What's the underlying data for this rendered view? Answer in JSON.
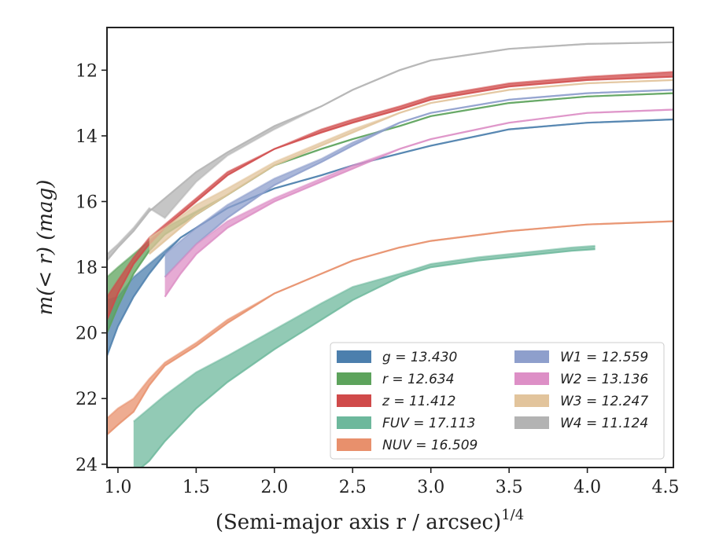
{
  "chart_data": {
    "type": "line",
    "xlabel": "(Semi-major axis r / arcsec)",
    "xlabel_sup": "1/4",
    "ylabel": "m(< r) (mag)",
    "xlim": [
      0.93,
      4.55
    ],
    "ylim": [
      24.1,
      10.7
    ],
    "y_inverted": true,
    "xticks": [
      1.0,
      1.5,
      2.0,
      2.5,
      3.0,
      3.5,
      4.0,
      4.5
    ],
    "xtick_labels": [
      "1.0",
      "1.5",
      "2.0",
      "2.5",
      "3.0",
      "3.5",
      "4.0",
      "4.5"
    ],
    "yticks": [
      12,
      14,
      16,
      18,
      20,
      22,
      24
    ],
    "ytick_labels": [
      "12",
      "14",
      "16",
      "18",
      "20",
      "22",
      "24"
    ],
    "grid": false,
    "legend_position": "lower-right",
    "series": [
      {
        "name": "g",
        "value": "13.430",
        "color": "#4c7fad",
        "x": [
          0.93,
          1.0,
          1.1,
          1.2,
          1.3,
          1.4,
          1.5,
          1.7,
          2.0,
          2.3,
          2.5,
          3.0,
          3.5,
          4.0,
          4.55
        ],
        "y": [
          20.7,
          19.8,
          18.9,
          18.2,
          17.6,
          17.1,
          16.8,
          16.2,
          15.6,
          15.2,
          14.9,
          14.3,
          13.8,
          13.6,
          13.5
        ],
        "y2": [
          19.0,
          18.9,
          18.3,
          17.9,
          17.5,
          17.1,
          16.8,
          16.2,
          15.6,
          15.2,
          14.9,
          14.3,
          13.8,
          13.6,
          13.5
        ]
      },
      {
        "name": "r",
        "value": "12.634",
        "color": "#5da35c",
        "x": [
          0.93,
          1.0,
          1.1,
          1.2,
          1.3,
          1.5,
          1.7,
          2.0,
          2.3,
          2.5,
          2.8,
          3.0,
          3.5,
          4.0,
          4.55
        ],
        "y": [
          20.0,
          19.2,
          18.2,
          17.5,
          17.0,
          16.4,
          15.8,
          14.9,
          14.4,
          14.1,
          13.7,
          13.4,
          13.0,
          12.8,
          12.7
        ],
        "y2": [
          18.3,
          18.0,
          17.6,
          17.2,
          16.8,
          16.3,
          15.8,
          14.9,
          14.4,
          14.1,
          13.7,
          13.4,
          13.0,
          12.8,
          12.7
        ]
      },
      {
        "name": "z",
        "value": "11.412",
        "color": "#d04a4a",
        "x": [
          0.93,
          1.0,
          1.1,
          1.2,
          1.3,
          1.5,
          1.7,
          2.0,
          2.3,
          2.5,
          2.8,
          3.0,
          3.5,
          4.0,
          4.55
        ],
        "y": [
          19.6,
          18.8,
          17.9,
          17.3,
          16.8,
          16.0,
          15.2,
          14.4,
          13.9,
          13.6,
          13.2,
          12.9,
          12.5,
          12.3,
          12.2
        ],
        "y2": [
          18.9,
          18.4,
          17.7,
          17.1,
          16.7,
          15.9,
          15.1,
          14.4,
          13.8,
          13.5,
          13.1,
          12.8,
          12.4,
          12.2,
          12.05
        ]
      },
      {
        "name": "FUV",
        "value": "17.113",
        "color": "#6db89c",
        "x": [
          1.1,
          1.2,
          1.3,
          1.5,
          1.7,
          2.0,
          2.3,
          2.5,
          2.8,
          3.0,
          3.3,
          3.6,
          3.9,
          4.05
        ],
        "y": [
          24.3,
          23.9,
          23.3,
          22.3,
          21.5,
          20.5,
          19.6,
          19.0,
          18.3,
          18.0,
          17.8,
          17.65,
          17.5,
          17.45
        ],
        "y2": [
          22.7,
          22.3,
          21.9,
          21.2,
          20.7,
          19.9,
          19.1,
          18.6,
          18.2,
          17.9,
          17.7,
          17.55,
          17.4,
          17.35
        ]
      },
      {
        "name": "NUV",
        "value": "16.509",
        "color": "#e8906c",
        "x": [
          0.93,
          1.0,
          1.1,
          1.2,
          1.3,
          1.5,
          1.7,
          2.0,
          2.3,
          2.5,
          2.8,
          3.0,
          3.5,
          4.0,
          4.55
        ],
        "y": [
          23.1,
          22.8,
          22.4,
          21.6,
          21.0,
          20.4,
          19.7,
          18.8,
          18.2,
          17.8,
          17.4,
          17.2,
          16.9,
          16.7,
          16.6
        ],
        "y2": [
          22.6,
          22.3,
          22.0,
          21.4,
          20.9,
          20.3,
          19.6,
          18.8,
          18.2,
          17.8,
          17.4,
          17.2,
          16.9,
          16.7,
          16.6
        ]
      },
      {
        "name": "W1",
        "value": "12.559",
        "color": "#8e9fcc",
        "x": [
          1.3,
          1.4,
          1.5,
          1.7,
          2.0,
          2.3,
          2.5,
          2.8,
          3.0,
          3.5,
          4.0,
          4.55
        ],
        "y": [
          18.3,
          17.8,
          17.3,
          16.5,
          15.5,
          14.8,
          14.3,
          13.6,
          13.3,
          12.9,
          12.7,
          12.6
        ],
        "y2": [
          17.6,
          17.2,
          16.8,
          16.1,
          15.3,
          14.7,
          14.2,
          13.6,
          13.3,
          12.9,
          12.7,
          12.6
        ]
      },
      {
        "name": "W2",
        "value": "13.136",
        "color": "#dd8fc6",
        "x": [
          1.3,
          1.4,
          1.5,
          1.7,
          2.0,
          2.3,
          2.5,
          2.8,
          3.0,
          3.5,
          4.0,
          4.55
        ],
        "y": [
          18.9,
          18.2,
          17.6,
          16.8,
          16.0,
          15.4,
          15.0,
          14.4,
          14.1,
          13.6,
          13.3,
          13.2
        ],
        "y2": [
          18.3,
          17.8,
          17.3,
          16.6,
          15.9,
          15.3,
          14.9,
          14.4,
          14.1,
          13.6,
          13.3,
          13.2
        ]
      },
      {
        "name": "W3",
        "value": "12.247",
        "color": "#e2c49c",
        "x": [
          1.2,
          1.3,
          1.5,
          1.7,
          2.0,
          2.3,
          2.5,
          2.8,
          3.0,
          3.5,
          4.0,
          4.55
        ],
        "y": [
          17.6,
          17.2,
          16.4,
          15.8,
          14.9,
          14.3,
          13.9,
          13.3,
          13.0,
          12.6,
          12.4,
          12.3
        ],
        "y2": [
          17.1,
          16.8,
          16.1,
          15.6,
          14.8,
          14.2,
          13.8,
          13.3,
          13.0,
          12.6,
          12.4,
          12.3
        ]
      },
      {
        "name": "W4",
        "value": "11.124",
        "color": "#b3b3b3",
        "x": [
          0.93,
          1.0,
          1.1,
          1.2,
          1.3,
          1.5,
          1.7,
          2.0,
          2.3,
          2.5,
          2.8,
          3.0,
          3.5,
          4.0,
          4.55
        ],
        "y": [
          17.8,
          17.4,
          16.9,
          16.3,
          15.9,
          15.1,
          14.5,
          13.7,
          13.1,
          12.6,
          12.0,
          11.7,
          11.35,
          11.2,
          11.15
        ],
        "y2": [
          17.6,
          17.3,
          16.8,
          16.2,
          16.5,
          15.4,
          14.6,
          13.8,
          13.1,
          12.6,
          12.0,
          11.7,
          11.35,
          11.2,
          11.15
        ]
      }
    ]
  }
}
